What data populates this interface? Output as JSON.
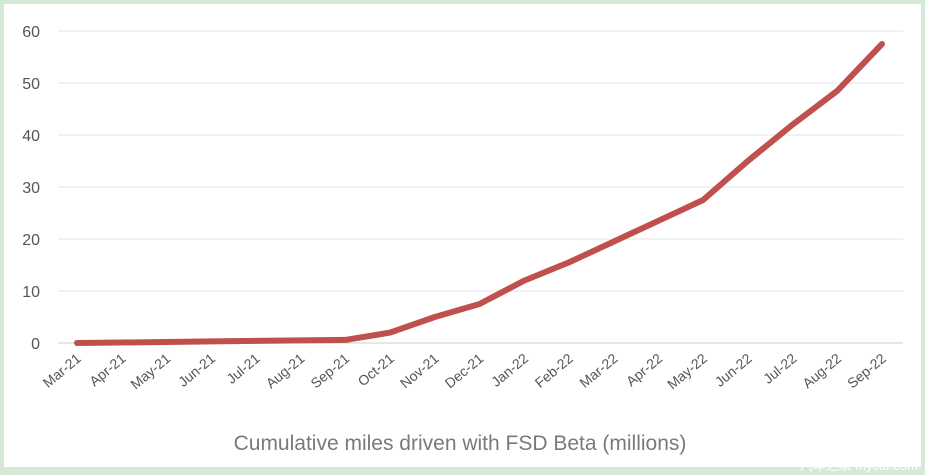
{
  "chart_data": {
    "type": "line",
    "title": "",
    "xlabel": "Cumulative miles driven with FSD Beta (millions)",
    "ylabel": "",
    "categories": [
      "Mar-21",
      "Apr-21",
      "May-21",
      "Jun-21",
      "Jul-21",
      "Aug-21",
      "Sep-21",
      "Oct-21",
      "Nov-21",
      "Dec-21",
      "Jan-22",
      "Feb-22",
      "Mar-22",
      "Apr-22",
      "May-22",
      "Jun-22",
      "Jul-22",
      "Aug-22",
      "Sep-22"
    ],
    "series": [
      {
        "values": [
          0,
          0.1,
          0.2,
          0.3,
          0.4,
          0.5,
          0.6,
          2,
          5,
          7.5,
          12,
          15.5,
          19.5,
          23.5,
          27.5,
          35,
          42,
          48.5,
          57.5
        ]
      }
    ],
    "ylim": [
      0,
      60
    ],
    "yticks": [
      0,
      10,
      20,
      30,
      40,
      50,
      60
    ],
    "grid": true,
    "colors": {
      "line": "#c0504d",
      "grid": "#e4e4e4",
      "axis": "#cccccc"
    }
  },
  "watermark": "汽车之家 mycar.com"
}
